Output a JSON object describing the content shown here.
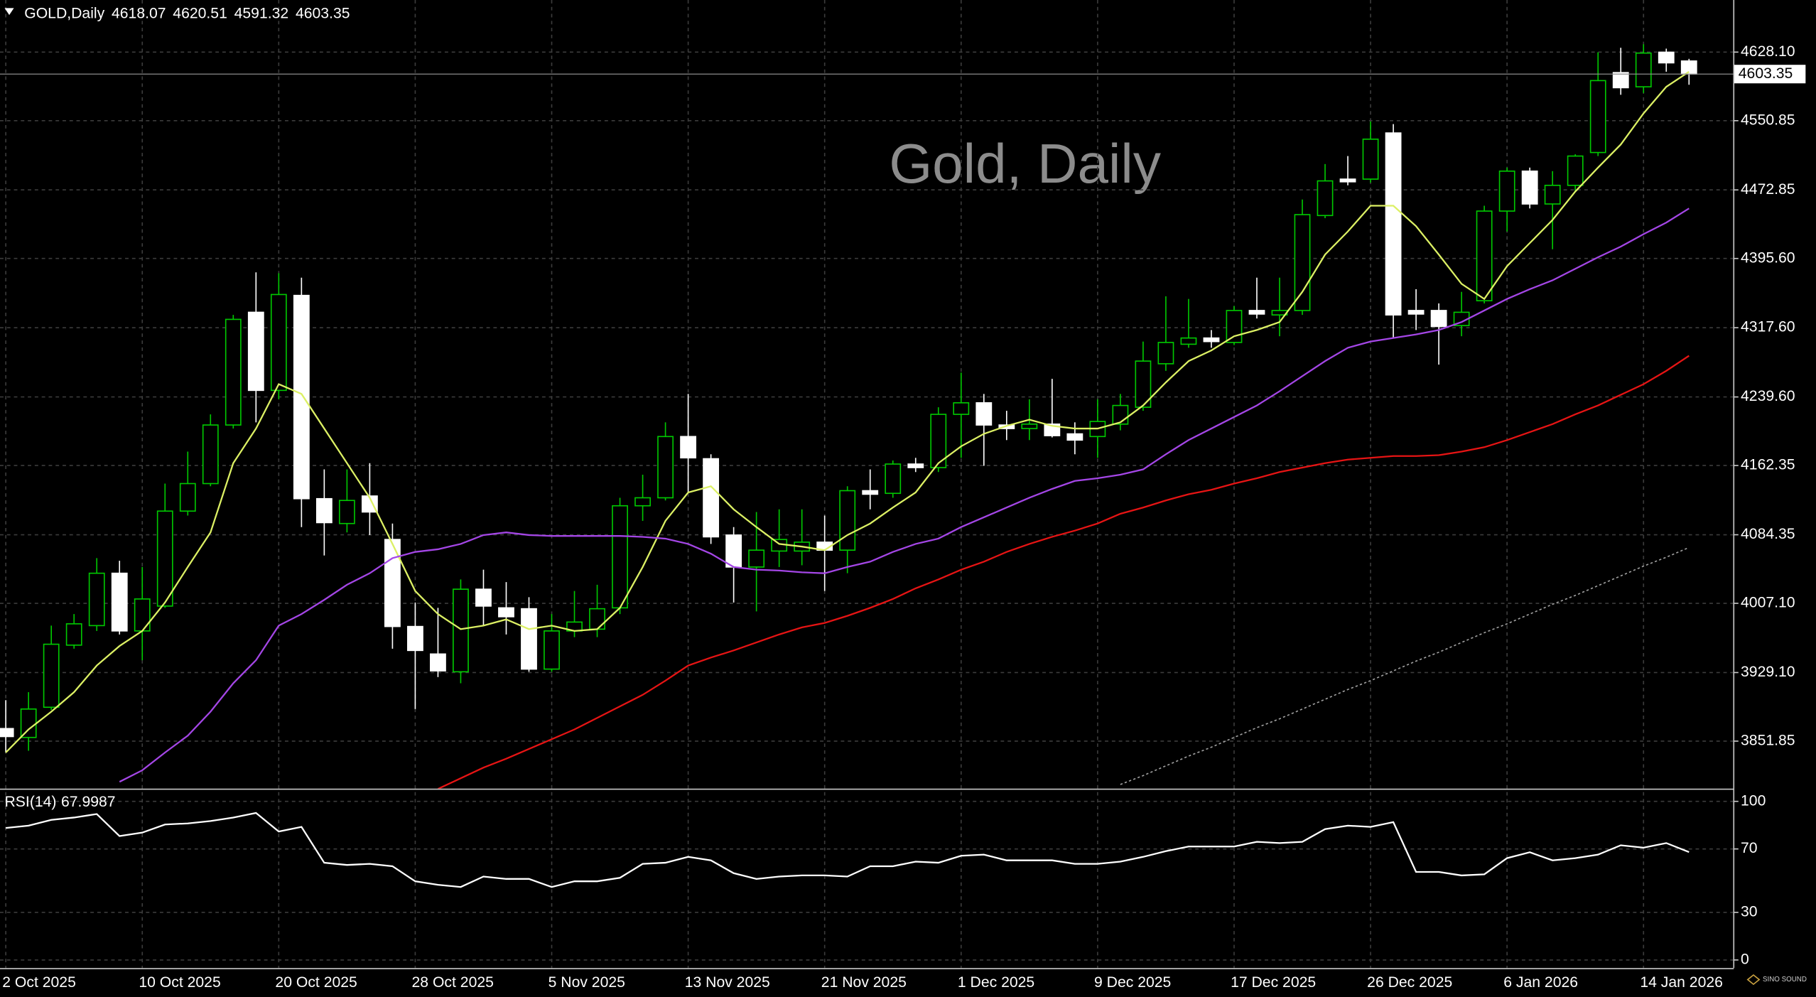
{
  "chart_data": [
    {
      "type": "candlestick",
      "title": "GOLD,Daily",
      "watermark": "Gold, Daily",
      "logo": "SINO SOUND",
      "categories": [
        "2 Oct 2025",
        null,
        null,
        null,
        null,
        null,
        "10 Oct 2025",
        null,
        null,
        null,
        null,
        null,
        "20 Oct 2025",
        null,
        null,
        null,
        null,
        null,
        "28 Oct 2025",
        null,
        null,
        null,
        null,
        null,
        "5 Nov 2025",
        null,
        null,
        null,
        null,
        null,
        "13 Nov 2025",
        null,
        null,
        null,
        null,
        null,
        "21 Nov 2025",
        null,
        null,
        null,
        null,
        null,
        "1 Dec 2025",
        null,
        null,
        null,
        null,
        null,
        "9 Dec 2025",
        null,
        null,
        null,
        null,
        null,
        "17 Dec 2025",
        null,
        null,
        null,
        null,
        null,
        "26 Dec 2025",
        null,
        null,
        null,
        null,
        null,
        "6 Jan 2026",
        null,
        null,
        null,
        null,
        null,
        "14 Jan 2026",
        null,
        null
      ],
      "open": [
        3866,
        3856,
        3890,
        3960,
        3982,
        4041,
        3976,
        4004,
        4111,
        4142,
        4208,
        4335,
        4247,
        4354,
        4125,
        4097,
        4128,
        4079,
        3981,
        3950,
        3930,
        4023,
        4002,
        4001,
        3933,
        3976,
        3978,
        4002,
        4117,
        4126,
        4195,
        4170,
        4084,
        4048,
        4066,
        4066,
        4076,
        4067,
        4134,
        4131,
        4164,
        4160,
        4220,
        4233,
        4208,
        4204,
        4209,
        4198,
        4195,
        4209,
        4228,
        4277,
        4299,
        4306,
        4301,
        4337,
        4332,
        4337,
        4444,
        4485,
        4485,
        4537,
        4337,
        4337,
        4320,
        4348,
        4449,
        4494,
        4457,
        4478,
        4515,
        4605,
        4589,
        4628,
        4618.07
      ],
      "high": [
        3898,
        3907,
        3982,
        3995,
        4058,
        4055,
        4048,
        4142,
        4178,
        4220,
        4332,
        4380,
        4379,
        4374,
        4158,
        4158,
        4165,
        4097,
        4008,
        4002,
        4034,
        4045,
        4031,
        4014,
        3995,
        4021,
        4028,
        4126,
        4152,
        4211,
        4243,
        4175,
        4093,
        4110,
        4113,
        4113,
        4106,
        4139,
        4158,
        4168,
        4171,
        4228,
        4267,
        4243,
        4224,
        4237,
        4260,
        4211,
        4237,
        4243,
        4302,
        4353,
        4350,
        4315,
        4342,
        4374,
        4374,
        4462,
        4502,
        4511,
        4550,
        4547,
        4361,
        4345,
        4358,
        4455,
        4498,
        4498,
        4494,
        4513,
        4628,
        4633,
        4637,
        4632,
        4620.51
      ],
      "low": [
        3839,
        3841,
        3887,
        3956,
        3976,
        3972,
        3943,
        4002,
        4106,
        4139,
        4204,
        4211,
        4237,
        4093,
        4061,
        4087,
        4084,
        3956,
        3888,
        3924,
        3917,
        3982,
        3972,
        3930,
        3930,
        3969,
        3969,
        3995,
        4100,
        4123,
        4132,
        4074,
        4008,
        3998,
        4048,
        4050,
        4021,
        4041,
        4113,
        4126,
        4155,
        4155,
        4171,
        4162,
        4191,
        4191,
        4194,
        4175,
        4171,
        4202,
        4224,
        4269,
        4295,
        4295,
        4298,
        4328,
        4308,
        4332,
        4441,
        4478,
        4481,
        4306,
        4315,
        4276,
        4308,
        4345,
        4426,
        4452,
        4406,
        4471,
        4511,
        4580,
        4582,
        4606,
        4591.32
      ],
      "close": [
        3857,
        3888,
        3961,
        3984,
        4041,
        3976,
        4012,
        4111,
        4142,
        4208,
        4327,
        4247,
        4355,
        4125,
        4098,
        4123,
        4110,
        3981,
        3954,
        3931,
        4023,
        4004,
        3992,
        3933,
        3976,
        3986,
        4001,
        4117,
        4126,
        4195,
        4171,
        4082,
        4048,
        4067,
        4079,
        4076,
        4067,
        4134,
        4130,
        4164,
        4160,
        4220,
        4233,
        4208,
        4204,
        4209,
        4196,
        4191,
        4212,
        4230,
        4280,
        4301,
        4306,
        4302,
        4337,
        4333,
        4337,
        4445,
        4483,
        4482,
        4530,
        4332,
        4333,
        4319,
        4335,
        4449,
        4494,
        4457,
        4478,
        4511,
        4596,
        4588,
        4627,
        4616,
        4603.35
      ],
      "bull_color": "#00c800",
      "bear_color": "#ffffff",
      "overlays": [
        {
          "color": "#dcf064",
          "style": "solid",
          "values": [
            3839,
            3865,
            3885,
            3907,
            3937,
            3959,
            3976,
            4008,
            4048,
            4087,
            4165,
            4204,
            4254,
            4243,
            4204,
            4165,
            4126,
            4074,
            4021,
            3995,
            3978,
            3982,
            3989,
            3978,
            3982,
            3976,
            3978,
            4002,
            4048,
            4100,
            4132,
            4139,
            4113,
            4093,
            4074,
            4071,
            4067,
            4084,
            4097,
            4115,
            4132,
            4165,
            4184,
            4198,
            4207,
            4214,
            4207,
            4204,
            4204,
            4211,
            4230,
            4256,
            4280,
            4292,
            4308,
            4315,
            4324,
            4358,
            4400,
            4426,
            4455,
            4455,
            4432,
            4400,
            4367,
            4350,
            4387,
            4413,
            4439,
            4471,
            4498,
            4524,
            4559,
            4589,
            4606
          ]
        },
        {
          "color": "#a446e6",
          "style": "solid",
          "values": [
            null,
            null,
            null,
            null,
            null,
            3806,
            3819,
            3839,
            3858,
            3885,
            3917,
            3943,
            3982,
            3995,
            4011,
            4028,
            4041,
            4058,
            4065,
            4068,
            4074,
            4084,
            4087,
            4084,
            4083,
            4083,
            4083,
            4083,
            4082,
            4080,
            4074,
            4063,
            4048,
            4045,
            4044,
            4042,
            4041,
            4048,
            4054,
            4065,
            4074,
            4080,
            4093,
            4104,
            4115,
            4126,
            4136,
            4145,
            4148,
            4152,
            4158,
            4175,
            4191,
            4204,
            4217,
            4230,
            4246,
            4263,
            4280,
            4295,
            4302,
            4306,
            4310,
            4315,
            4324,
            4337,
            4350,
            4361,
            4371,
            4384,
            4397,
            4409,
            4423,
            4436,
            4452
          ]
        },
        {
          "color": "#e61414",
          "style": "solid",
          "values": [
            null,
            null,
            null,
            null,
            null,
            null,
            null,
            null,
            null,
            null,
            null,
            null,
            null,
            null,
            null,
            null,
            null,
            null,
            null,
            3798,
            3810,
            3822,
            3832,
            3843,
            3854,
            3865,
            3878,
            3891,
            3904,
            3920,
            3937,
            3946,
            3954,
            3963,
            3972,
            3980,
            3985,
            3993,
            4002,
            4012,
            4024,
            4034,
            4045,
            4054,
            4065,
            4074,
            4082,
            4089,
            4097,
            4108,
            4115,
            4123,
            4130,
            4135,
            4142,
            4148,
            4155,
            4160,
            4165,
            4169,
            4171,
            4173,
            4173,
            4174,
            4178,
            4183,
            4191,
            4200,
            4209,
            4220,
            4230,
            4242,
            4254,
            4269,
            4286
          ]
        },
        {
          "color": "#a0a0a0",
          "style": "dotted",
          "values": [
            null,
            null,
            null,
            null,
            null,
            null,
            null,
            null,
            null,
            null,
            null,
            null,
            null,
            null,
            null,
            null,
            null,
            null,
            null,
            null,
            null,
            null,
            null,
            null,
            null,
            null,
            null,
            null,
            null,
            null,
            null,
            null,
            null,
            null,
            null,
            null,
            null,
            null,
            null,
            null,
            null,
            null,
            null,
            null,
            null,
            null,
            null,
            null,
            null,
            3803,
            3813,
            3824,
            3835,
            3845,
            3856,
            3867,
            3877,
            3888,
            3899,
            3910,
            3920,
            3931,
            3942,
            3952,
            3963,
            3974,
            3984,
            3995,
            4006,
            4016,
            4027,
            4038,
            4049,
            4059,
            4070
          ]
        }
      ],
      "ylim": [
        3798.4,
        4686.8
      ],
      "yticks": [
        {
          "value": 4628.1,
          "label": "4628.10"
        },
        4550.85,
        4472.85,
        {
          "value": 4395.6,
          "label": "4395.60"
        },
        {
          "value": 4317.6,
          "label": "4317.60"
        },
        {
          "value": 4239.6,
          "label": "4239.60"
        },
        4162.35,
        4084.35,
        {
          "value": 4007.1,
          "label": "4007.10"
        },
        {
          "value": 3929.1,
          "label": "3929.10"
        },
        3851.85
      ],
      "grid": true
    },
    {
      "type": "line",
      "title": "RSI(14)",
      "color": "#ffffff",
      "values": [
        83.2,
        84.7,
        88.3,
        89.8,
        92.0,
        78.1,
        80.3,
        85.4,
        86.1,
        87.6,
        89.8,
        92.7,
        81.0,
        83.9,
        61.3,
        59.9,
        60.6,
        59.1,
        49.6,
        47.4,
        46.0,
        52.6,
        51.1,
        51.1,
        46.0,
        49.6,
        49.6,
        51.8,
        60.6,
        61.3,
        65.0,
        62.8,
        54.7,
        51.1,
        52.6,
        53.3,
        53.3,
        52.6,
        59.1,
        59.1,
        62.0,
        61.3,
        65.7,
        66.4,
        62.8,
        62.8,
        62.8,
        60.6,
        60.6,
        62.0,
        65.0,
        68.6,
        71.5,
        71.5,
        71.5,
        74.5,
        73.7,
        74.5,
        82.5,
        84.7,
        83.9,
        86.9,
        55.5,
        55.5,
        53.3,
        54.0,
        64.2,
        67.9,
        62.8,
        64.2,
        66.4,
        72.3,
        70.8,
        73.7,
        67.9987
      ],
      "ylim": [
        -5.1,
        106.6
      ],
      "yticks": [
        100,
        70,
        30,
        0
      ],
      "grid": true
    }
  ]
}
